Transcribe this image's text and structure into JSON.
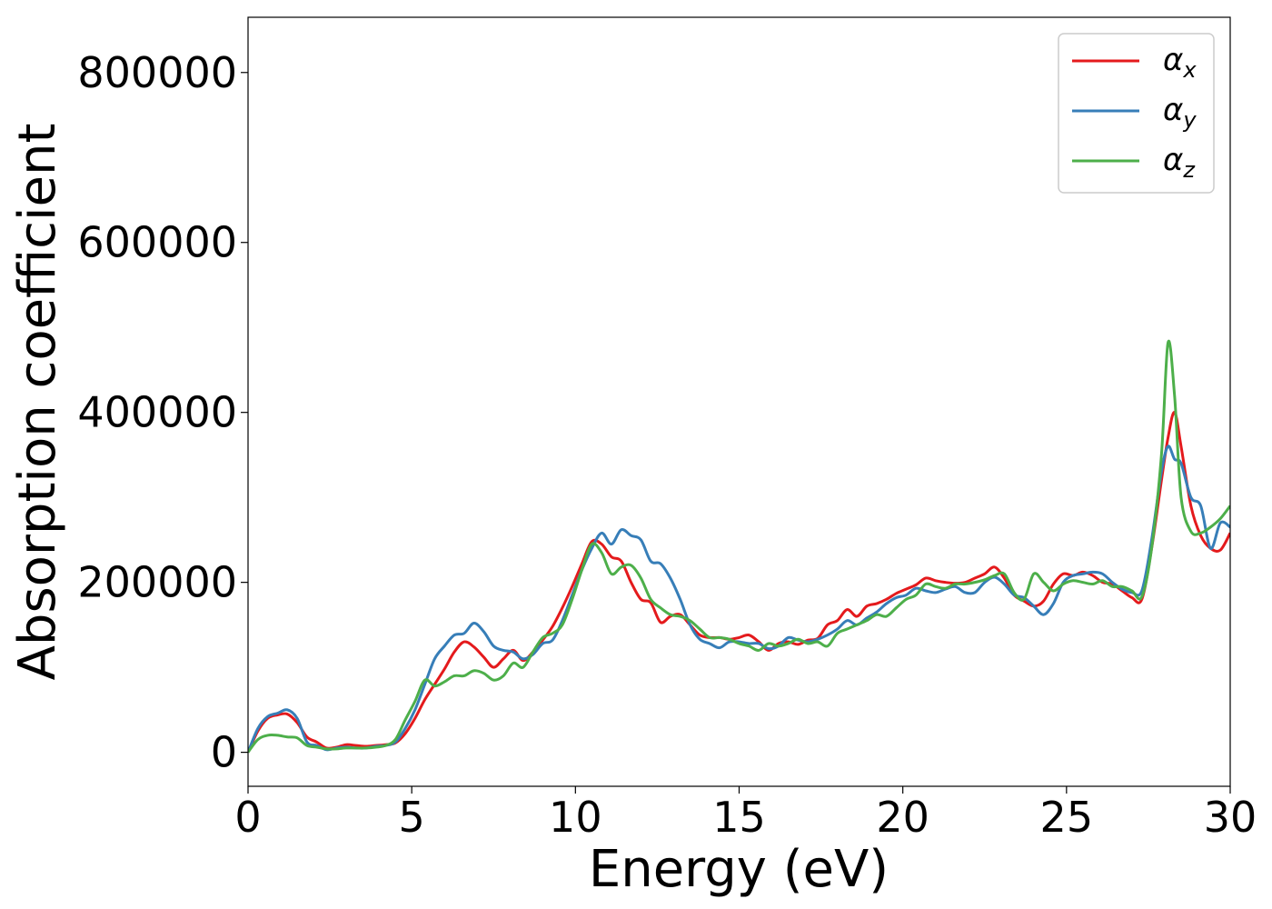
{
  "chart_data": {
    "type": "line",
    "title": "",
    "xlabel": "Energy (eV)",
    "ylabel": "Absorption coefficient",
    "xlim": [
      0,
      30
    ],
    "ylim": [
      -40000,
      865000
    ],
    "xticks": [
      0,
      5,
      10,
      15,
      20,
      25,
      30
    ],
    "xtick_labels": [
      "0",
      "5",
      "10",
      "15",
      "20",
      "25",
      "30"
    ],
    "yticks": [
      0,
      200000,
      400000,
      600000,
      800000
    ],
    "ytick_labels": [
      "0",
      "200000",
      "400000",
      "600000",
      "800000"
    ],
    "grid": false,
    "legend_position": "top-right",
    "series": [
      {
        "name": "α_x",
        "legend_base": "α",
        "legend_sub": "x",
        "color": "#e41a1c",
        "x": [
          0,
          0.3,
          0.6,
          0.9,
          1.2,
          1.5,
          1.8,
          2.1,
          2.4,
          2.7,
          3.0,
          3.3,
          3.6,
          3.9,
          4.2,
          4.5,
          4.8,
          5.1,
          5.4,
          5.7,
          6.0,
          6.3,
          6.6,
          6.9,
          7.2,
          7.5,
          7.8,
          8.1,
          8.4,
          8.7,
          9.0,
          9.3,
          9.6,
          9.9,
          10.2,
          10.5,
          10.8,
          11.1,
          11.4,
          11.7,
          12.0,
          12.3,
          12.6,
          12.9,
          13.2,
          13.5,
          13.8,
          14.1,
          14.4,
          14.7,
          15.0,
          15.3,
          15.6,
          15.9,
          16.2,
          16.5,
          16.8,
          17.1,
          17.4,
          17.7,
          18.0,
          18.3,
          18.6,
          18.9,
          19.2,
          19.5,
          19.8,
          20.1,
          20.4,
          20.7,
          21.0,
          21.3,
          21.6,
          21.9,
          22.2,
          22.5,
          22.8,
          23.1,
          23.4,
          23.7,
          24.0,
          24.3,
          24.6,
          24.9,
          25.2,
          25.5,
          25.8,
          26.1,
          26.4,
          26.7,
          27.0,
          27.3,
          27.6,
          27.9,
          28.1,
          28.3,
          28.5,
          28.8,
          29.1,
          29.4,
          29.7,
          30.0
        ],
        "values": [
          0,
          25000,
          40000,
          44000,
          45000,
          35000,
          18000,
          12000,
          5000,
          6000,
          9000,
          8000,
          7000,
          8000,
          9000,
          11000,
          22000,
          40000,
          62000,
          80000,
          98000,
          118000,
          130000,
          124000,
          112000,
          100000,
          110000,
          120000,
          108000,
          118000,
          132000,
          148000,
          170000,
          195000,
          222000,
          248000,
          245000,
          230000,
          225000,
          200000,
          180000,
          176000,
          153000,
          160000,
          162000,
          150000,
          138000,
          135000,
          135000,
          133000,
          135000,
          138000,
          130000,
          120000,
          128000,
          130000,
          127000,
          132000,
          134000,
          150000,
          155000,
          168000,
          160000,
          172000,
          175000,
          180000,
          187000,
          192000,
          197000,
          205000,
          202000,
          200000,
          199000,
          200000,
          205000,
          210000,
          218000,
          205000,
          185000,
          178000,
          172000,
          178000,
          198000,
          210000,
          208000,
          212000,
          208000,
          200000,
          198000,
          190000,
          182000,
          180000,
          240000,
          320000,
          370000,
          400000,
          360000,
          290000,
          255000,
          240000,
          238000,
          258000
        ]
      },
      {
        "name": "α_y",
        "legend_base": "α",
        "legend_sub": "y",
        "color": "#377eb8",
        "x": [
          0,
          0.3,
          0.6,
          0.9,
          1.2,
          1.5,
          1.8,
          2.1,
          2.4,
          2.7,
          3.0,
          3.3,
          3.6,
          3.9,
          4.2,
          4.5,
          4.8,
          5.1,
          5.4,
          5.7,
          6.0,
          6.3,
          6.6,
          6.9,
          7.2,
          7.5,
          7.8,
          8.1,
          8.4,
          8.7,
          9.0,
          9.3,
          9.6,
          9.9,
          10.2,
          10.5,
          10.8,
          11.1,
          11.4,
          11.7,
          12.0,
          12.3,
          12.6,
          12.9,
          13.2,
          13.5,
          13.8,
          14.1,
          14.4,
          14.7,
          15.0,
          15.3,
          15.6,
          15.9,
          16.2,
          16.5,
          16.8,
          17.1,
          17.4,
          17.7,
          18.0,
          18.3,
          18.6,
          18.9,
          19.2,
          19.5,
          19.8,
          20.1,
          20.4,
          20.7,
          21.0,
          21.3,
          21.6,
          21.9,
          22.2,
          22.5,
          22.8,
          23.1,
          23.4,
          23.7,
          24.0,
          24.3,
          24.6,
          24.9,
          25.2,
          25.5,
          25.8,
          26.1,
          26.4,
          26.7,
          27.0,
          27.3,
          27.6,
          27.9,
          28.1,
          28.3,
          28.5,
          28.8,
          29.1,
          29.4,
          29.7,
          30.0
        ],
        "values": [
          0,
          28000,
          42000,
          46000,
          50000,
          40000,
          12000,
          8000,
          3000,
          5000,
          6000,
          5000,
          5000,
          7000,
          8000,
          12000,
          28000,
          50000,
          80000,
          110000,
          125000,
          138000,
          140000,
          152000,
          142000,
          125000,
          120000,
          118000,
          110000,
          115000,
          128000,
          132000,
          155000,
          185000,
          215000,
          240000,
          258000,
          245000,
          262000,
          255000,
          250000,
          225000,
          222000,
          205000,
          180000,
          150000,
          133000,
          128000,
          123000,
          130000,
          130000,
          128000,
          128000,
          122000,
          125000,
          135000,
          132000,
          130000,
          133000,
          138000,
          145000,
          155000,
          150000,
          158000,
          165000,
          175000,
          182000,
          185000,
          193000,
          190000,
          188000,
          192000,
          195000,
          188000,
          188000,
          200000,
          206000,
          198000,
          185000,
          182000,
          172000,
          162000,
          175000,
          200000,
          208000,
          210000,
          212000,
          210000,
          200000,
          192000,
          188000,
          190000,
          250000,
          330000,
          360000,
          345000,
          340000,
          300000,
          290000,
          240000,
          270000,
          265000
        ]
      },
      {
        "name": "α_z",
        "legend_base": "α",
        "legend_sub": "z",
        "color": "#4daf4a",
        "x": [
          0,
          0.3,
          0.6,
          0.9,
          1.2,
          1.5,
          1.8,
          2.1,
          2.4,
          2.7,
          3.0,
          3.3,
          3.6,
          3.9,
          4.2,
          4.5,
          4.8,
          5.1,
          5.4,
          5.7,
          6.0,
          6.3,
          6.6,
          6.9,
          7.2,
          7.5,
          7.8,
          8.1,
          8.4,
          8.7,
          9.0,
          9.3,
          9.6,
          9.9,
          10.2,
          10.5,
          10.8,
          11.1,
          11.4,
          11.7,
          12.0,
          12.3,
          12.6,
          12.9,
          13.2,
          13.5,
          13.8,
          14.1,
          14.4,
          14.7,
          15.0,
          15.3,
          15.6,
          15.9,
          16.2,
          16.5,
          16.8,
          17.1,
          17.4,
          17.7,
          18.0,
          18.3,
          18.6,
          18.9,
          19.2,
          19.5,
          19.8,
          20.1,
          20.4,
          20.7,
          21.0,
          21.3,
          21.6,
          21.9,
          22.2,
          22.5,
          22.8,
          23.1,
          23.4,
          23.7,
          24.0,
          24.3,
          24.6,
          24.9,
          25.2,
          25.5,
          25.8,
          26.1,
          26.4,
          26.7,
          27.0,
          27.3,
          27.6,
          27.9,
          28.1,
          28.3,
          28.5,
          28.8,
          29.1,
          29.4,
          29.7,
          30.0
        ],
        "values": [
          0,
          15000,
          20000,
          20000,
          18000,
          17000,
          8000,
          6000,
          4000,
          4000,
          5000,
          5000,
          5000,
          6000,
          8000,
          15000,
          38000,
          60000,
          85000,
          78000,
          83000,
          90000,
          90000,
          96000,
          93000,
          85000,
          90000,
          105000,
          100000,
          118000,
          135000,
          140000,
          150000,
          180000,
          215000,
          245000,
          235000,
          210000,
          218000,
          220000,
          205000,
          180000,
          170000,
          162000,
          160000,
          155000,
          145000,
          135000,
          135000,
          133000,
          128000,
          125000,
          120000,
          128000,
          125000,
          128000,
          133000,
          128000,
          130000,
          125000,
          140000,
          145000,
          150000,
          155000,
          162000,
          160000,
          170000,
          180000,
          185000,
          198000,
          195000,
          193000,
          198000,
          198000,
          200000,
          203000,
          208000,
          210000,
          188000,
          180000,
          210000,
          200000,
          190000,
          198000,
          202000,
          200000,
          198000,
          202000,
          195000,
          195000,
          190000,
          183000,
          240000,
          350000,
          482000,
          420000,
          300000,
          260000,
          258000,
          265000,
          275000,
          290000
        ]
      }
    ]
  }
}
